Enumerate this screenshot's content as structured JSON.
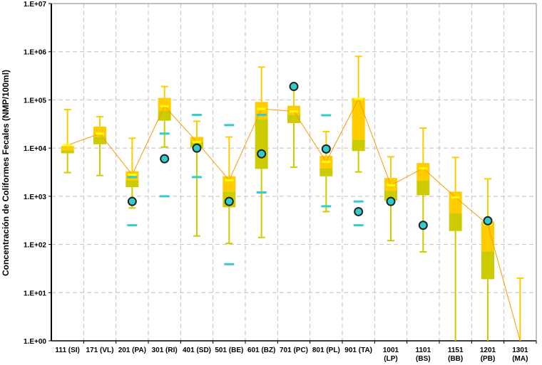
{
  "chart_data": {
    "type": "box",
    "title": "",
    "xlabel": "",
    "ylabel": "Concentración de Coliformes Fecales (NMP/100ml)",
    "yscale": "log",
    "ylim": [
      1,
      10000000
    ],
    "y_ticks": [
      "1.E+00",
      "1.E+01",
      "1.E+02",
      "1.E+03",
      "1.E+04",
      "1.E+05",
      "1.E+06",
      "1.E+07"
    ],
    "grid": true,
    "colors": {
      "box_upper": "#ffcc00",
      "box_lower": "#cccc00",
      "whisker_upper": "#ffcc00",
      "whisker_lower": "#cccc00",
      "mean_marker": "#ffff00",
      "mean_line": "#ff9900",
      "point": "#33cccc",
      "point_border": "#222222",
      "dash": "#33cccc"
    },
    "categories": [
      {
        "label": "111 (SI)",
        "min": 3100,
        "q1": 7800,
        "median": 9000,
        "q3": 11000,
        "max": 63000,
        "mean": 11500,
        "points": [],
        "dashes": []
      },
      {
        "label": "171 (VL)",
        "min": 2700,
        "q1": 12000,
        "median": 17000,
        "q3": 28000,
        "max": 45000,
        "mean": 20000,
        "points": [],
        "dashes": []
      },
      {
        "label": "201 (PA)",
        "min": 570,
        "q1": 1550,
        "median": 2150,
        "q3": 3300,
        "max": 16000,
        "mean": 2800,
        "points": [
          780
        ],
        "dashes": [
          2500,
          250
        ]
      },
      {
        "label": "301 (RI)",
        "min": 10500,
        "q1": 37000,
        "median": 60000,
        "q3": 110000,
        "max": 190000,
        "mean": 74000,
        "points": [
          6000
        ],
        "dashes": [
          20000,
          1000
        ]
      },
      {
        "label": "401 (SD)",
        "min": 150,
        "q1": 10300,
        "median": 13500,
        "q3": 17000,
        "max": 36000,
        "mean": 13500,
        "points": [
          10000
        ],
        "dashes": [
          49000,
          2500
        ]
      },
      {
        "label": "501 (BE)",
        "min": 105,
        "q1": 590,
        "median": 1250,
        "q3": 2600,
        "max": 17000,
        "mean": 2150,
        "points": [
          780
        ],
        "dashes": [
          30000,
          39
        ]
      },
      {
        "label": "601 (BZ)",
        "min": 140,
        "q1": 3700,
        "median": 40000,
        "q3": 91000,
        "max": 480000,
        "mean": 65000,
        "points": [
          7600
        ],
        "dashes": [
          49000,
          1200
        ]
      },
      {
        "label": "701 (PC)",
        "min": 4000,
        "q1": 33000,
        "median": 49000,
        "q3": 76000,
        "max": 190000,
        "mean": 58000,
        "points": [
          190000
        ],
        "dashes": []
      },
      {
        "label": "801 (PL)",
        "min": 480,
        "q1": 2600,
        "median": 3800,
        "q3": 6900,
        "max": 22000,
        "mean": 5200,
        "points": [
          9600
        ],
        "dashes": [
          48000,
          620
        ]
      },
      {
        "label": "901 (TA)",
        "min": 3200,
        "q1": 8700,
        "median": 15000,
        "q3": 110000,
        "max": 800000,
        "mean": 105000,
        "points": [
          480
        ],
        "dashes": [
          780,
          250
        ]
      },
      {
        "label": "1001 (LP)",
        "min": 120,
        "q1": 810,
        "median": 1300,
        "q3": 2400,
        "max": 6600,
        "mean": 1700,
        "points": [
          780
        ],
        "dashes": []
      },
      {
        "label": "1101 (BS)",
        "min": 70,
        "q1": 1050,
        "median": 2100,
        "q3": 4900,
        "max": 26000,
        "mean": 3800,
        "points": [
          250
        ],
        "dashes": []
      },
      {
        "label": "1151 (BB)",
        "min": 1,
        "q1": 190,
        "median": 440,
        "q3": 1250,
        "max": 6400,
        "mean": 950,
        "points": [],
        "dashes": []
      },
      {
        "label": "1201 (PB)",
        "min": 1,
        "q1": 19,
        "median": 72,
        "q3": 300,
        "max": 2300,
        "mean": 260,
        "points": [
          310
        ],
        "dashes": []
      },
      {
        "label": "1301 (MA)",
        "min": 1,
        "q1": null,
        "median": null,
        "q3": null,
        "max": 20,
        "mean": 1,
        "points": [],
        "dashes": []
      }
    ]
  }
}
